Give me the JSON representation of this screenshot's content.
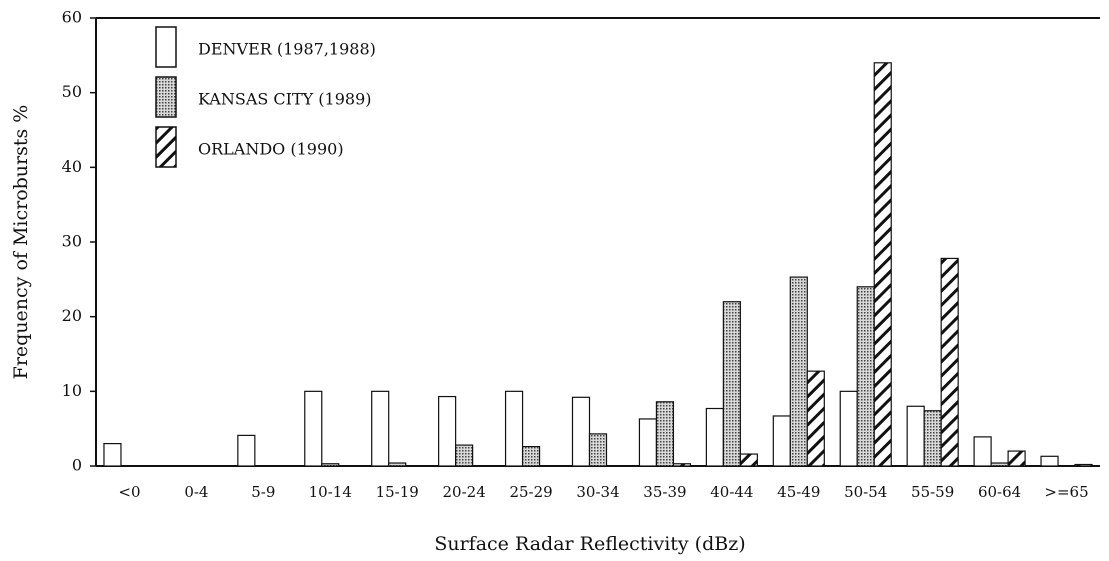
{
  "chart_data": {
    "type": "bar",
    "ylabel": "Frequency of Microbursts %",
    "xlabel": "Surface Radar Reflectivity (dBz)",
    "categories": [
      "<0",
      "0-4",
      "5-9",
      "10-14",
      "15-19",
      "20-24",
      "25-29",
      "30-34",
      "35-39",
      "40-44",
      "45-49",
      "50-54",
      "55-59",
      "60-64",
      ">=65"
    ],
    "series": [
      {
        "name": "DENVER (1987,1988)",
        "color": "#ffffff",
        "fill": "solid",
        "values": [
          3,
          0,
          4.1,
          10,
          10,
          9.3,
          10,
          9.2,
          6.3,
          7.7,
          6.7,
          10,
          8,
          3.9,
          1.3
        ]
      },
      {
        "name": "KANSAS CITY (1989)",
        "color": "#9a9a9a",
        "fill": "dots",
        "values": [
          0,
          0,
          0,
          0.3,
          0.4,
          2.8,
          2.6,
          4.3,
          8.6,
          22,
          25.3,
          24,
          7.4,
          0.4,
          0
        ]
      },
      {
        "name": "ORLANDO (1990)",
        "color": "#ffffff",
        "fill": "hatch",
        "values": [
          0,
          0,
          0,
          0,
          0,
          0,
          0,
          0,
          0.3,
          1.6,
          12.7,
          54,
          27.8,
          2,
          0.2
        ]
      }
    ],
    "ylim": [
      0,
      60
    ],
    "yticks": [
      0,
      10,
      20,
      30,
      40,
      50,
      60
    ]
  }
}
